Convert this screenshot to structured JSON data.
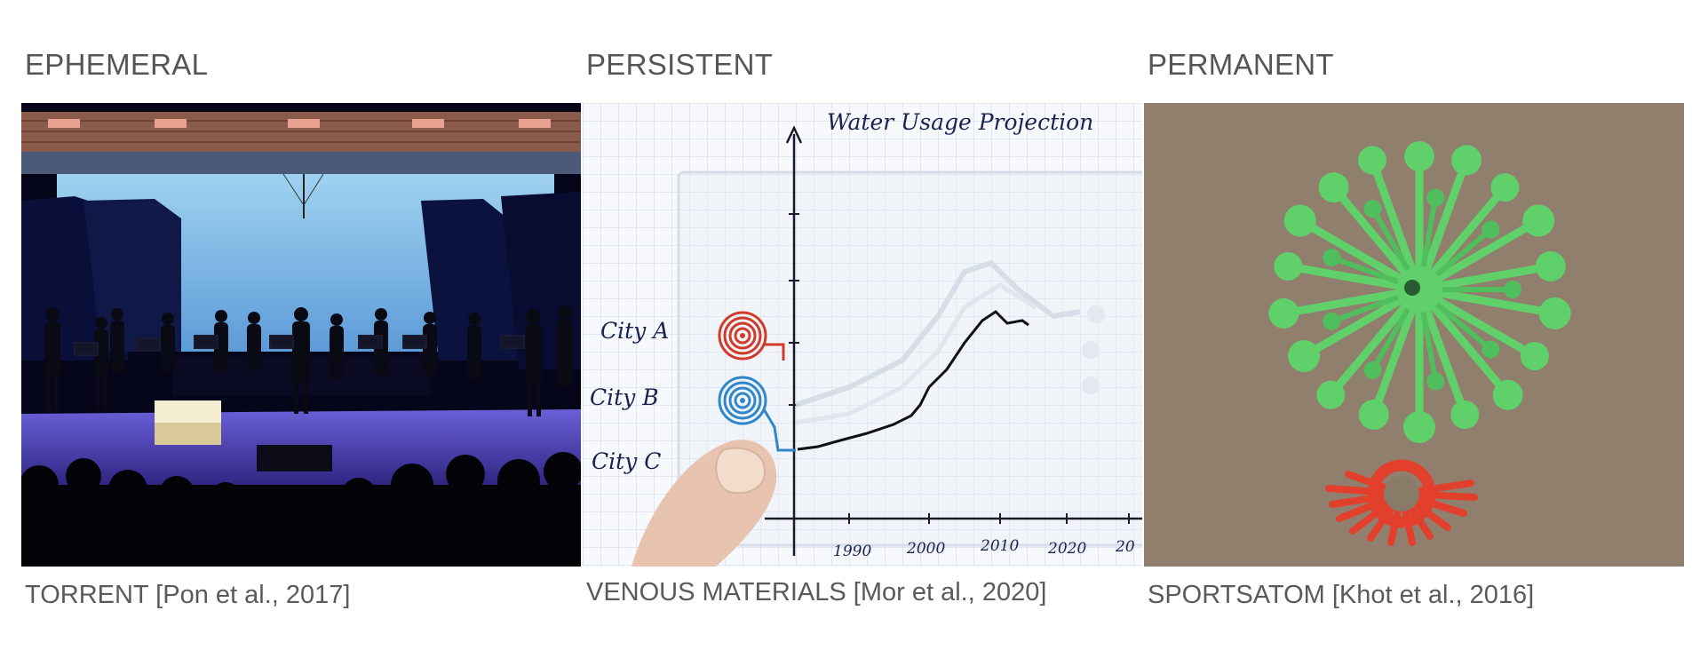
{
  "columns": [
    {
      "heading": "EPHEMERAL",
      "caption": "TORRENT [Pon et al., 2017]",
      "image": "concert-stage-flute-ensemble"
    },
    {
      "heading": "PERSISTENT",
      "caption": "VENOUS MATERIALS [Mor et al., 2020]",
      "image": "hand-drawn-chart-with-fluid-spirals",
      "chart_labels": {
        "title": "Water Usage Projection",
        "row_labels": [
          "City A",
          "City B",
          "City C"
        ],
        "x_ticks": [
          "1990",
          "2000",
          "2010",
          "2020",
          "20"
        ]
      }
    },
    {
      "heading": "PERMANENT",
      "caption": "SPORTSATOM [Khot et al., 2016]",
      "image": "3d-printed-radial-objects"
    }
  ],
  "colors": {
    "stage_blue": "#3a3cc8",
    "spiral_red": "#d23a2a",
    "spiral_blue": "#2f86c8",
    "print_green": "#5fd06a",
    "print_red": "#e2402c",
    "table_brown": "#8a7a68"
  }
}
